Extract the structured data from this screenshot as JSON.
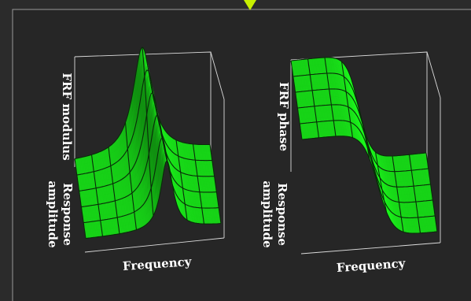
{
  "colors": {
    "background": "#2b2b2b",
    "panel": "#262626",
    "frame": "#9a9a9a",
    "surface": "#19e619",
    "marker": "#c8f000"
  },
  "left_plot": {
    "z_label": "FRF modulus",
    "y_label_line1": "Response",
    "y_label_line2": "amplitude",
    "x_label": "Frequency"
  },
  "right_plot": {
    "z_label": "FRF phase",
    "y_label_line1": "Response",
    "y_label_line2": "amplitude",
    "x_label": "Frequency"
  }
}
